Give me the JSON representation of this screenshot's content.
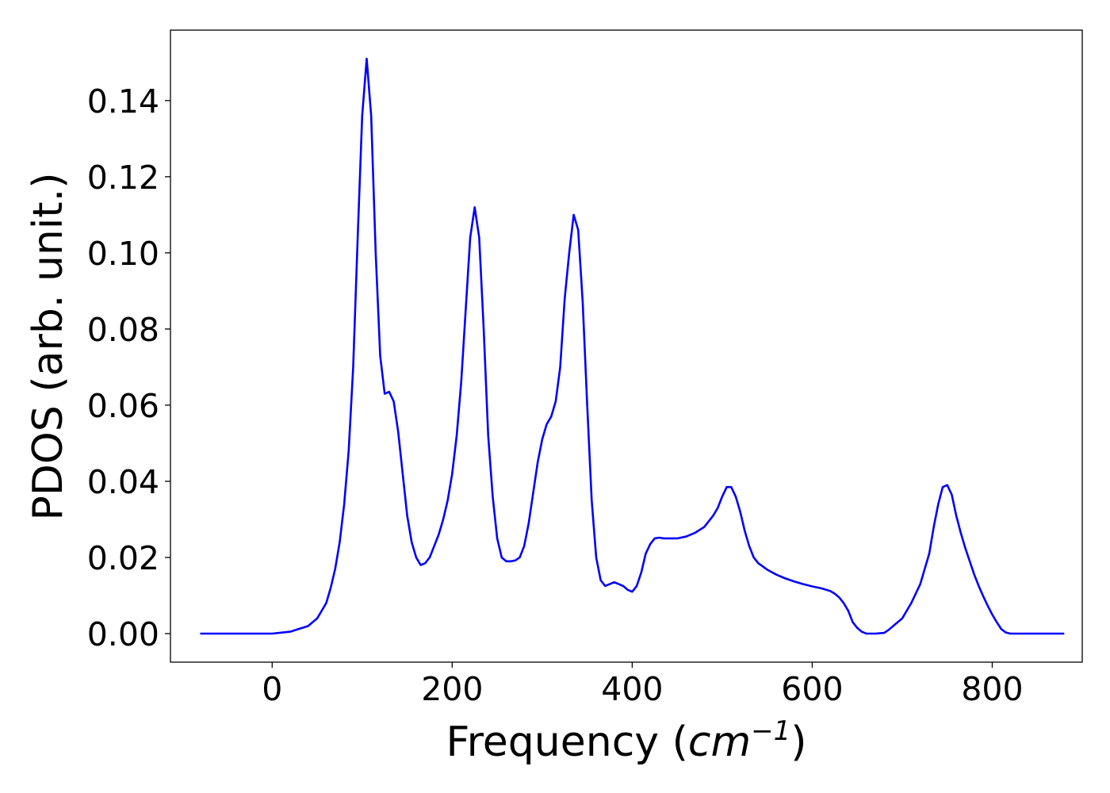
{
  "chart_data": {
    "type": "line",
    "title": "",
    "xlabel_prefix": "Frequency (",
    "xlabel_math_base": "cm",
    "xlabel_math_exp": "−1",
    "xlabel_suffix": ")",
    "ylabel": "PDOS (arb. unit.)",
    "xlim": [
      -113,
      900
    ],
    "ylim": [
      -0.0075,
      0.1585
    ],
    "xticks": [
      0,
      200,
      400,
      600,
      800
    ],
    "xtick_labels": [
      "0",
      "200",
      "400",
      "600",
      "800"
    ],
    "yticks": [
      0.0,
      0.02,
      0.04,
      0.06,
      0.08,
      0.1,
      0.12,
      0.14
    ],
    "ytick_labels": [
      "0.00",
      "0.02",
      "0.04",
      "0.06",
      "0.08",
      "0.10",
      "0.12",
      "0.14"
    ],
    "grid": false,
    "series": [
      {
        "color": "#0000ff",
        "x": [
          -80,
          -40,
          0,
          20,
          40,
          50,
          60,
          65,
          70,
          75,
          80,
          85,
          90,
          95,
          100,
          105,
          110,
          115,
          120,
          125,
          130,
          135,
          140,
          145,
          150,
          155,
          160,
          165,
          170,
          175,
          180,
          185,
          190,
          195,
          200,
          205,
          210,
          215,
          220,
          225,
          230,
          235,
          240,
          245,
          250,
          255,
          260,
          265,
          270,
          275,
          280,
          285,
          290,
          295,
          300,
          305,
          310,
          315,
          320,
          325,
          330,
          335,
          340,
          345,
          350,
          355,
          360,
          365,
          370,
          375,
          380,
          385,
          390,
          395,
          400,
          405,
          410,
          415,
          420,
          425,
          430,
          435,
          440,
          445,
          450,
          460,
          470,
          480,
          490,
          495,
          500,
          505,
          510,
          515,
          520,
          525,
          530,
          535,
          540,
          550,
          560,
          570,
          580,
          590,
          600,
          610,
          620,
          625,
          630,
          635,
          640,
          645,
          650,
          655,
          660,
          670,
          680,
          685,
          690,
          700,
          710,
          720,
          725,
          730,
          735,
          740,
          745,
          750,
          755,
          760,
          765,
          770,
          775,
          780,
          785,
          790,
          795,
          800,
          805,
          810,
          815,
          820,
          830,
          850,
          880
        ],
        "y": [
          0.0,
          0.0,
          0.0,
          0.0005,
          0.002,
          0.004,
          0.008,
          0.012,
          0.017,
          0.024,
          0.034,
          0.048,
          0.07,
          0.104,
          0.136,
          0.151,
          0.136,
          0.1,
          0.073,
          0.063,
          0.0635,
          0.061,
          0.053,
          0.042,
          0.031,
          0.024,
          0.02,
          0.018,
          0.0185,
          0.02,
          0.023,
          0.026,
          0.03,
          0.035,
          0.042,
          0.052,
          0.066,
          0.085,
          0.104,
          0.112,
          0.104,
          0.08,
          0.052,
          0.036,
          0.025,
          0.02,
          0.019,
          0.019,
          0.0192,
          0.02,
          0.023,
          0.029,
          0.037,
          0.045,
          0.051,
          0.055,
          0.057,
          0.061,
          0.07,
          0.088,
          0.1,
          0.11,
          0.106,
          0.087,
          0.06,
          0.035,
          0.02,
          0.014,
          0.0125,
          0.013,
          0.0135,
          0.013,
          0.0125,
          0.0115,
          0.011,
          0.0125,
          0.016,
          0.021,
          0.0235,
          0.025,
          0.0252,
          0.025,
          0.025,
          0.025,
          0.025,
          0.0255,
          0.0265,
          0.028,
          0.031,
          0.033,
          0.036,
          0.0385,
          0.0385,
          0.036,
          0.032,
          0.027,
          0.023,
          0.02,
          0.0185,
          0.0168,
          0.0155,
          0.0145,
          0.0137,
          0.013,
          0.0124,
          0.0119,
          0.0112,
          0.0105,
          0.0095,
          0.008,
          0.006,
          0.003,
          0.0015,
          0.0005,
          0.0,
          0.0,
          0.0002,
          0.001,
          0.002,
          0.004,
          0.008,
          0.013,
          0.017,
          0.021,
          0.028,
          0.034,
          0.0385,
          0.039,
          0.0365,
          0.031,
          0.0265,
          0.0225,
          0.019,
          0.0155,
          0.0125,
          0.0098,
          0.0073,
          0.005,
          0.003,
          0.0012,
          0.0003,
          0.0,
          0.0,
          0.0,
          0.0
        ]
      }
    ]
  }
}
